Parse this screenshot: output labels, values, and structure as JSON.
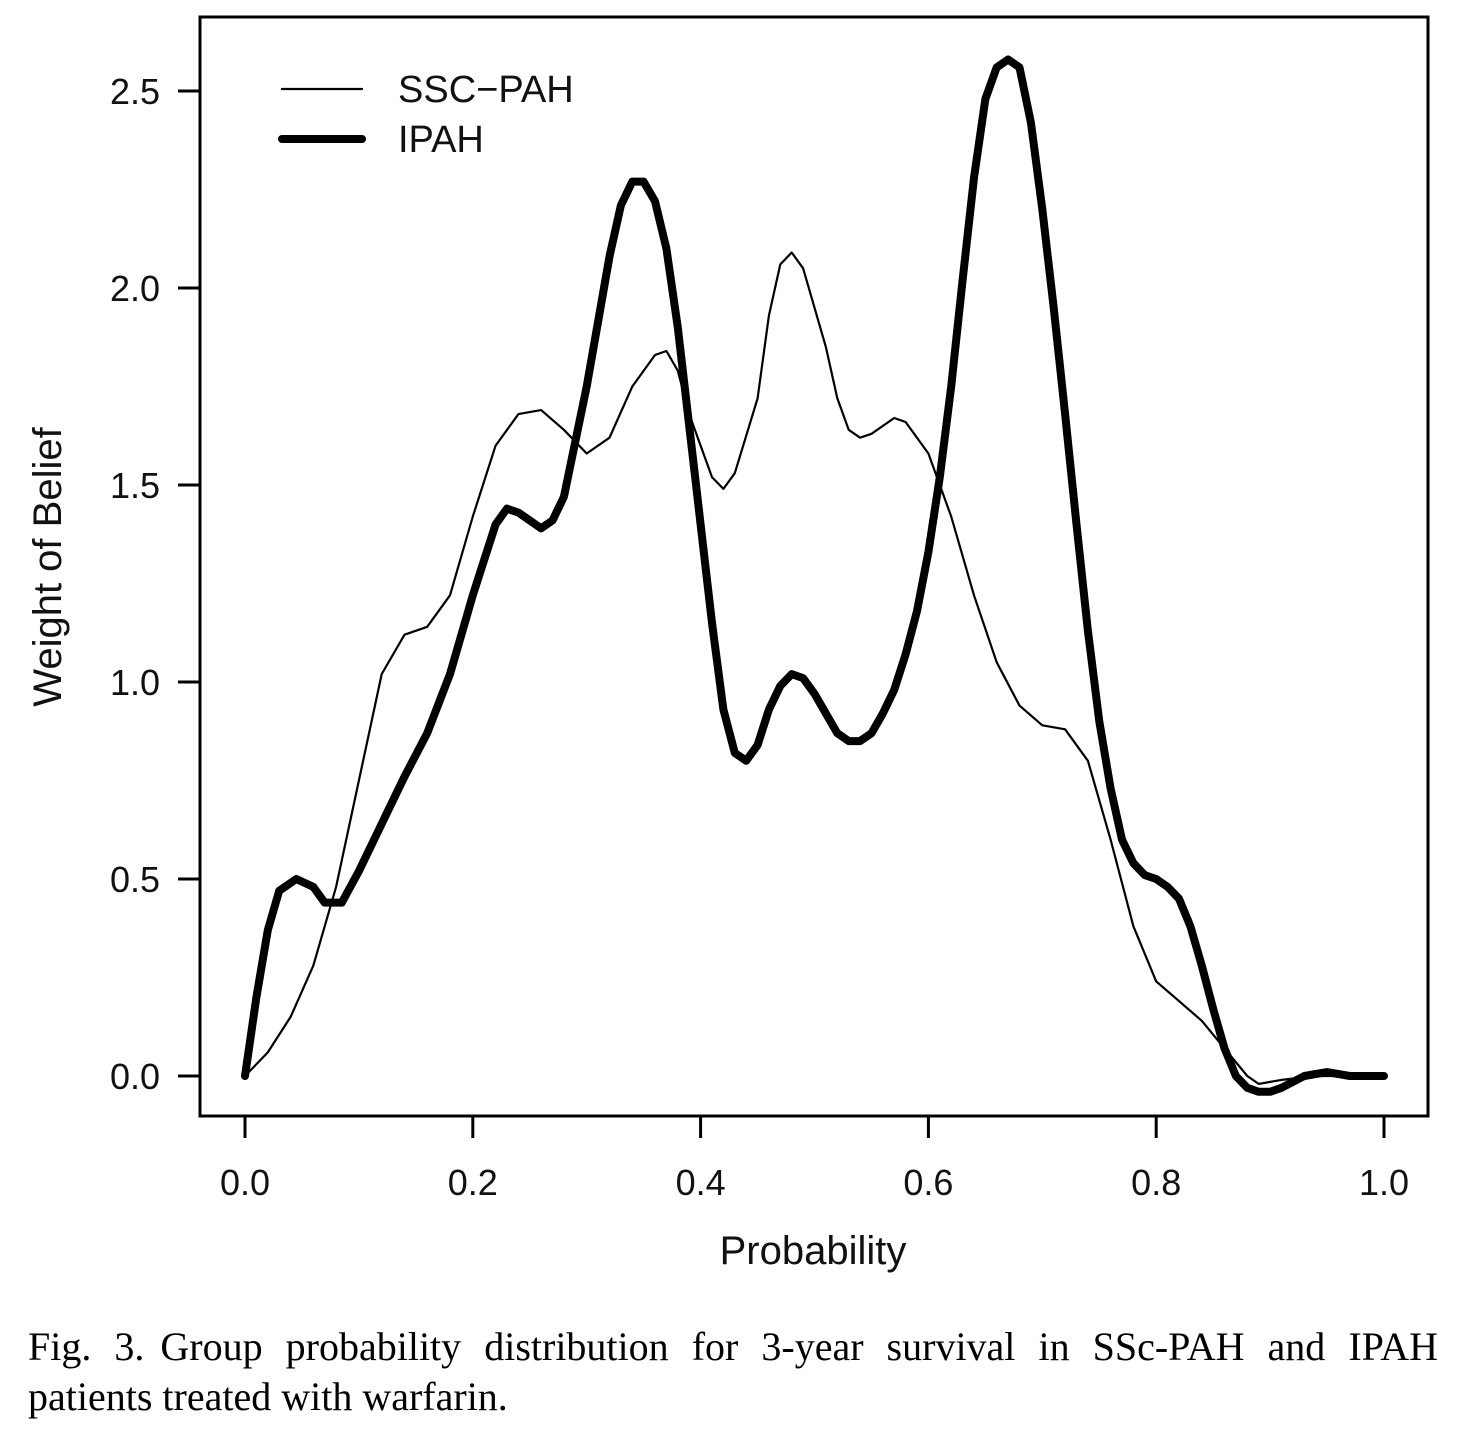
{
  "chart_data": {
    "type": "line",
    "title": "",
    "xlabel": "Probability",
    "ylabel": "Weight of Belief",
    "xlim": [
      0,
      1
    ],
    "ylim": [
      -0.1,
      2.67
    ],
    "xticks": [
      0.0,
      0.2,
      0.4,
      0.6,
      0.8,
      1.0
    ],
    "xtick_labels": [
      "0.0",
      "0.2",
      "0.4",
      "0.6",
      "0.8",
      "1.0"
    ],
    "yticks": [
      0.0,
      0.5,
      1.0,
      1.5,
      2.0,
      2.5
    ],
    "ytick_labels": [
      "0.0",
      "0.5",
      "1.0",
      "1.5",
      "2.0",
      "2.5"
    ],
    "grid": false,
    "legend": "top-left",
    "series": [
      {
        "name": "SSC−PAH",
        "color": "#000000",
        "style": "thin",
        "points": [
          [
            0.0,
            0.0
          ],
          [
            0.02,
            0.06
          ],
          [
            0.04,
            0.15
          ],
          [
            0.06,
            0.28
          ],
          [
            0.08,
            0.48
          ],
          [
            0.1,
            0.75
          ],
          [
            0.12,
            1.02
          ],
          [
            0.14,
            1.12
          ],
          [
            0.16,
            1.14
          ],
          [
            0.18,
            1.22
          ],
          [
            0.2,
            1.42
          ],
          [
            0.22,
            1.6
          ],
          [
            0.24,
            1.68
          ],
          [
            0.26,
            1.69
          ],
          [
            0.28,
            1.64
          ],
          [
            0.3,
            1.58
          ],
          [
            0.32,
            1.62
          ],
          [
            0.34,
            1.75
          ],
          [
            0.36,
            1.83
          ],
          [
            0.37,
            1.84
          ],
          [
            0.38,
            1.79
          ],
          [
            0.39,
            1.68
          ],
          [
            0.41,
            1.52
          ],
          [
            0.42,
            1.49
          ],
          [
            0.43,
            1.53
          ],
          [
            0.45,
            1.72
          ],
          [
            0.46,
            1.93
          ],
          [
            0.47,
            2.06
          ],
          [
            0.48,
            2.09
          ],
          [
            0.49,
            2.05
          ],
          [
            0.51,
            1.85
          ],
          [
            0.52,
            1.72
          ],
          [
            0.53,
            1.64
          ],
          [
            0.54,
            1.62
          ],
          [
            0.55,
            1.63
          ],
          [
            0.57,
            1.67
          ],
          [
            0.58,
            1.66
          ],
          [
            0.6,
            1.58
          ],
          [
            0.62,
            1.42
          ],
          [
            0.64,
            1.22
          ],
          [
            0.66,
            1.05
          ],
          [
            0.68,
            0.94
          ],
          [
            0.7,
            0.89
          ],
          [
            0.72,
            0.88
          ],
          [
            0.74,
            0.8
          ],
          [
            0.76,
            0.6
          ],
          [
            0.78,
            0.38
          ],
          [
            0.8,
            0.24
          ],
          [
            0.82,
            0.19
          ],
          [
            0.84,
            0.14
          ],
          [
            0.86,
            0.07
          ],
          [
            0.88,
            0.0
          ],
          [
            0.89,
            -0.02
          ],
          [
            0.91,
            -0.01
          ],
          [
            0.94,
            0.0
          ],
          [
            0.97,
            0.0
          ],
          [
            1.0,
            0.0
          ]
        ]
      },
      {
        "name": "IPAH",
        "color": "#000000",
        "style": "thick",
        "points": [
          [
            0.0,
            0.0
          ],
          [
            0.01,
            0.2
          ],
          [
            0.02,
            0.37
          ],
          [
            0.03,
            0.47
          ],
          [
            0.045,
            0.5
          ],
          [
            0.06,
            0.48
          ],
          [
            0.07,
            0.44
          ],
          [
            0.085,
            0.44
          ],
          [
            0.1,
            0.52
          ],
          [
            0.12,
            0.64
          ],
          [
            0.14,
            0.76
          ],
          [
            0.16,
            0.87
          ],
          [
            0.18,
            1.02
          ],
          [
            0.2,
            1.22
          ],
          [
            0.22,
            1.4
          ],
          [
            0.23,
            1.44
          ],
          [
            0.24,
            1.43
          ],
          [
            0.26,
            1.39
          ],
          [
            0.27,
            1.41
          ],
          [
            0.28,
            1.47
          ],
          [
            0.3,
            1.75
          ],
          [
            0.32,
            2.08
          ],
          [
            0.33,
            2.21
          ],
          [
            0.34,
            2.27
          ],
          [
            0.35,
            2.27
          ],
          [
            0.36,
            2.22
          ],
          [
            0.37,
            2.1
          ],
          [
            0.38,
            1.9
          ],
          [
            0.39,
            1.65
          ],
          [
            0.4,
            1.4
          ],
          [
            0.41,
            1.15
          ],
          [
            0.42,
            0.93
          ],
          [
            0.43,
            0.82
          ],
          [
            0.44,
            0.8
          ],
          [
            0.45,
            0.84
          ],
          [
            0.46,
            0.93
          ],
          [
            0.47,
            0.99
          ],
          [
            0.48,
            1.02
          ],
          [
            0.49,
            1.01
          ],
          [
            0.5,
            0.97
          ],
          [
            0.51,
            0.92
          ],
          [
            0.52,
            0.87
          ],
          [
            0.53,
            0.85
          ],
          [
            0.54,
            0.85
          ],
          [
            0.55,
            0.87
          ],
          [
            0.56,
            0.92
          ],
          [
            0.57,
            0.98
          ],
          [
            0.58,
            1.07
          ],
          [
            0.59,
            1.18
          ],
          [
            0.6,
            1.33
          ],
          [
            0.61,
            1.52
          ],
          [
            0.62,
            1.75
          ],
          [
            0.63,
            2.02
          ],
          [
            0.64,
            2.28
          ],
          [
            0.65,
            2.48
          ],
          [
            0.66,
            2.56
          ],
          [
            0.67,
            2.58
          ],
          [
            0.68,
            2.56
          ],
          [
            0.69,
            2.42
          ],
          [
            0.7,
            2.2
          ],
          [
            0.71,
            1.95
          ],
          [
            0.72,
            1.68
          ],
          [
            0.73,
            1.4
          ],
          [
            0.74,
            1.13
          ],
          [
            0.75,
            0.9
          ],
          [
            0.76,
            0.73
          ],
          [
            0.77,
            0.6
          ],
          [
            0.78,
            0.54
          ],
          [
            0.79,
            0.51
          ],
          [
            0.8,
            0.5
          ],
          [
            0.81,
            0.48
          ],
          [
            0.82,
            0.45
          ],
          [
            0.83,
            0.38
          ],
          [
            0.84,
            0.28
          ],
          [
            0.85,
            0.17
          ],
          [
            0.86,
            0.07
          ],
          [
            0.87,
            0.0
          ],
          [
            0.88,
            -0.03
          ],
          [
            0.89,
            -0.04
          ],
          [
            0.9,
            -0.04
          ],
          [
            0.91,
            -0.03
          ],
          [
            0.93,
            0.0
          ],
          [
            0.95,
            0.01
          ],
          [
            0.97,
            0.0
          ],
          [
            1.0,
            0.0
          ]
        ]
      }
    ]
  },
  "caption": {
    "label": "Fig. 3.",
    "text": "Group probability distribution for 3-year survival in SSc-PAH and IPAH patients treated with warfarin."
  }
}
